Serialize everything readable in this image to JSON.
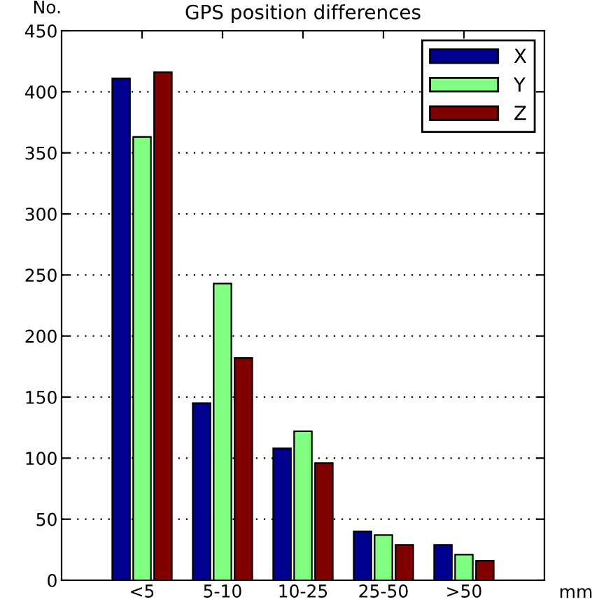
{
  "chart_data": {
    "type": "bar",
    "title": "GPS position differences",
    "xlabel": "mm",
    "ylabel": "No.",
    "categories": [
      "<5",
      "5-10",
      "10-25",
      "25-50",
      ">50"
    ],
    "series": [
      {
        "name": "X",
        "color": "#00008f",
        "values": [
          411,
          145,
          108,
          40,
          29
        ]
      },
      {
        "name": "Y",
        "color": "#80ff80",
        "values": [
          363,
          243,
          122,
          37,
          21
        ]
      },
      {
        "name": "Z",
        "color": "#800000",
        "values": [
          416,
          182,
          96,
          29,
          16
        ]
      }
    ],
    "ylim": [
      0,
      450
    ],
    "yticks": [
      0,
      50,
      100,
      150,
      200,
      250,
      300,
      350,
      400,
      450
    ],
    "grid": "y",
    "legend": "top right"
  }
}
